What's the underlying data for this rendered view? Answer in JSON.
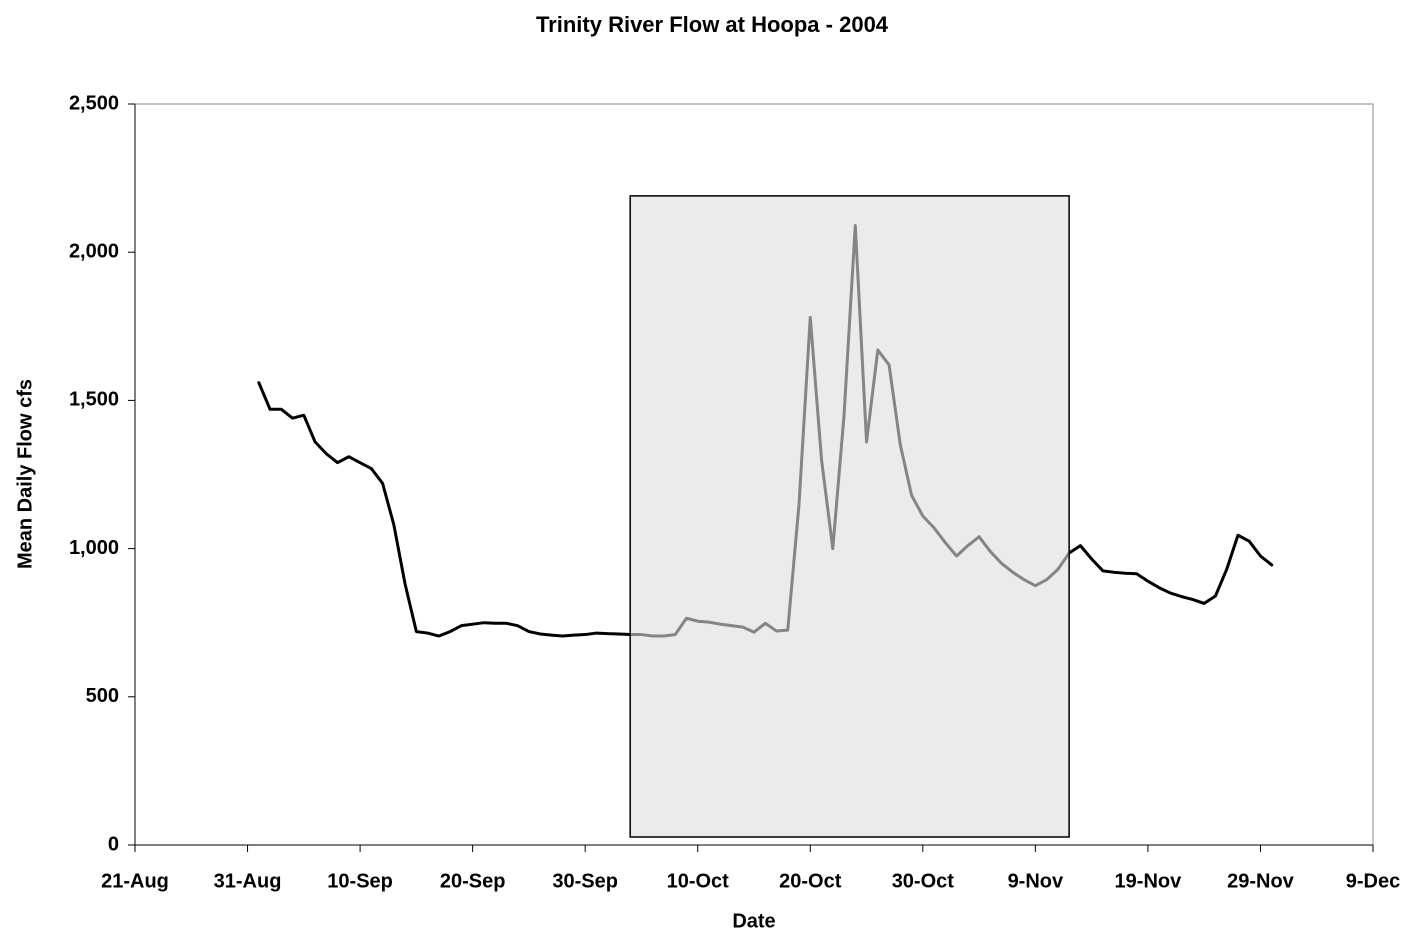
{
  "chart_data": {
    "type": "line",
    "title": "Trinity River Flow at Hoopa - 2004",
    "x_label": "Date",
    "y_label": "Mean Daily Flow cfs",
    "x": [
      "1-Sep",
      "2-Sep",
      "3-Sep",
      "4-Sep",
      "5-Sep",
      "6-Sep",
      "7-Sep",
      "8-Sep",
      "9-Sep",
      "10-Sep",
      "11-Sep",
      "12-Sep",
      "13-Sep",
      "14-Sep",
      "15-Sep",
      "16-Sep",
      "17-Sep",
      "18-Sep",
      "19-Sep",
      "20-Sep",
      "21-Sep",
      "22-Sep",
      "23-Sep",
      "24-Sep",
      "25-Sep",
      "26-Sep",
      "27-Sep",
      "28-Sep",
      "29-Sep",
      "30-Sep",
      "1-Oct",
      "2-Oct",
      "3-Oct",
      "4-Oct",
      "5-Oct",
      "6-Oct",
      "7-Oct",
      "8-Oct",
      "9-Oct",
      "10-Oct",
      "11-Oct",
      "12-Oct",
      "13-Oct",
      "14-Oct",
      "15-Oct",
      "16-Oct",
      "17-Oct",
      "18-Oct",
      "19-Oct",
      "20-Oct",
      "21-Oct",
      "22-Oct",
      "23-Oct",
      "24-Oct",
      "25-Oct",
      "26-Oct",
      "27-Oct",
      "28-Oct",
      "29-Oct",
      "30-Oct",
      "31-Oct",
      "1-Nov",
      "2-Nov",
      "3-Nov",
      "4-Nov",
      "5-Nov",
      "6-Nov",
      "7-Nov",
      "8-Nov",
      "9-Nov",
      "10-Nov",
      "11-Nov",
      "12-Nov",
      "13-Nov",
      "14-Nov",
      "15-Nov",
      "16-Nov",
      "17-Nov",
      "18-Nov",
      "19-Nov",
      "20-Nov",
      "21-Nov",
      "22-Nov",
      "23-Nov",
      "24-Nov",
      "25-Nov",
      "26-Nov",
      "27-Nov",
      "28-Nov",
      "29-Nov",
      "30-Nov"
    ],
    "series": [
      {
        "name": "Mean Daily Flow",
        "color": "#000000",
        "values": [
          1560,
          1470,
          1470,
          1440,
          1450,
          1360,
          1320,
          1290,
          1310,
          1290,
          1270,
          1220,
          1080,
          880,
          720,
          715,
          705,
          720,
          740,
          745,
          750,
          748,
          748,
          740,
          720,
          712,
          708,
          705,
          708,
          710,
          715,
          713,
          712,
          710,
          710,
          705,
          705,
          710,
          765,
          755,
          752,
          745,
          740,
          735,
          718,
          748,
          722,
          725,
          1150,
          1780,
          1300,
          1000,
          1450,
          2090,
          1360,
          1670,
          1620,
          1350,
          1180,
          1110,
          1070,
          1020,
          975,
          1010,
          1040,
          990,
          950,
          920,
          895,
          875,
          895,
          930,
          985,
          1010,
          965,
          925,
          920,
          917,
          915,
          890,
          868,
          850,
          838,
          828,
          815,
          840,
          930,
          1045,
          1025,
          975,
          945
        ]
      }
    ],
    "highlight": {
      "x": [
        "4-Oct",
        "12-Nov"
      ],
      "y": [
        27,
        2190
      ],
      "color": "#dddddd"
    },
    "xlim": [
      "21-Aug",
      "9-Dec"
    ],
    "xticks": [
      "21-Aug",
      "31-Aug",
      "10-Sep",
      "20-Sep",
      "30-Sep",
      "10-Oct",
      "20-Oct",
      "30-Oct",
      "9-Nov",
      "19-Nov",
      "29-Nov",
      "9-Dec"
    ],
    "ylim": [
      0,
      2500
    ],
    "yticks": [
      0,
      500,
      {
        "value": 1000,
        "label": "1,000"
      },
      {
        "value": 1500,
        "label": "1,500"
      },
      {
        "value": 2000,
        "label": "2,000"
      },
      {
        "value": 2500,
        "label": "2,500"
      }
    ],
    "grid": false
  }
}
